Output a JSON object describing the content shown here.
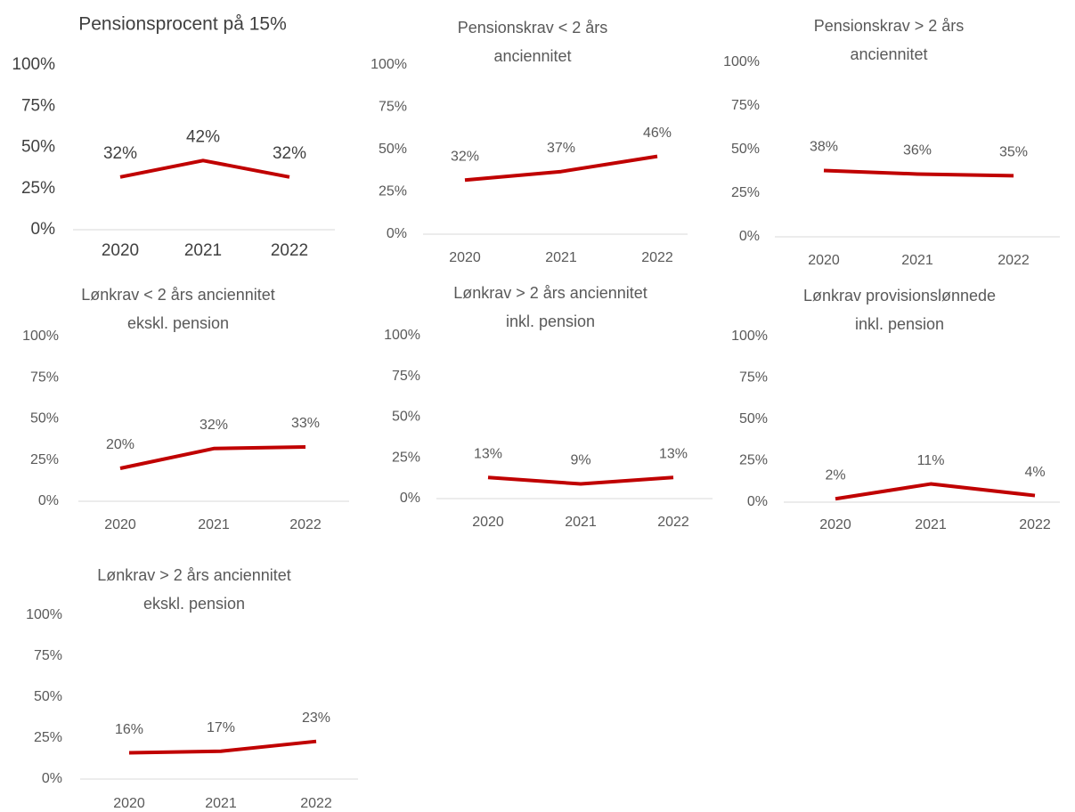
{
  "chart_data": [
    {
      "type": "line",
      "title": [
        "Pensionsprocent på 15%"
      ],
      "categories": [
        "2020",
        "2021",
        "2022"
      ],
      "values": [
        32,
        42,
        32
      ],
      "value_labels": [
        "32%",
        "42%",
        "32%"
      ],
      "color": "#c00000",
      "ylim": [
        0,
        100
      ],
      "yticks": [
        {
          "value": 0,
          "label": "0%"
        },
        {
          "value": 25,
          "label": "25%"
        },
        {
          "value": 50,
          "label": "50%"
        },
        {
          "value": 75,
          "label": "75%"
        },
        {
          "value": 100,
          "label": "100%"
        }
      ]
    },
    {
      "type": "line",
      "title": [
        "Pensionskrav < 2 års",
        "anciennitet"
      ],
      "categories": [
        "2020",
        "2021",
        "2022"
      ],
      "values": [
        32,
        37,
        46
      ],
      "value_labels": [
        "32%",
        "37%",
        "46%"
      ],
      "color": "#c00000",
      "ylim": [
        0,
        100
      ],
      "yticks": [
        {
          "value": 0,
          "label": "0%"
        },
        {
          "value": 25,
          "label": "25%"
        },
        {
          "value": 50,
          "label": "50%"
        },
        {
          "value": 75,
          "label": "75%"
        },
        {
          "value": 100,
          "label": "100%"
        }
      ]
    },
    {
      "type": "line",
      "title": [
        "Pensionskrav > 2 års",
        "anciennitet"
      ],
      "categories": [
        "2020",
        "2021",
        "2022"
      ],
      "values": [
        38,
        36,
        35
      ],
      "value_labels": [
        "38%",
        "36%",
        "35%"
      ],
      "color": "#c00000",
      "ylim": [
        0,
        100
      ],
      "yticks": [
        {
          "value": 0,
          "label": "0%"
        },
        {
          "value": 25,
          "label": "25%"
        },
        {
          "value": 50,
          "label": "50%"
        },
        {
          "value": 75,
          "label": "75%"
        },
        {
          "value": 100,
          "label": "100%"
        }
      ]
    },
    {
      "type": "line",
      "title": [
        "Lønkrav < 2 års anciennitet",
        "ekskl. pension"
      ],
      "categories": [
        "2020",
        "2021",
        "2022"
      ],
      "values": [
        20,
        32,
        33
      ],
      "value_labels": [
        "20%",
        "32%",
        "33%"
      ],
      "color": "#c00000",
      "ylim": [
        0,
        100
      ],
      "yticks": [
        {
          "value": 0,
          "label": "0%"
        },
        {
          "value": 25,
          "label": "25%"
        },
        {
          "value": 50,
          "label": "50%"
        },
        {
          "value": 75,
          "label": "75%"
        },
        {
          "value": 100,
          "label": "100%"
        }
      ]
    },
    {
      "type": "line",
      "title": [
        "Lønkrav > 2 års anciennitet",
        "inkl. pension"
      ],
      "categories": [
        "2020",
        "2021",
        "2022"
      ],
      "values": [
        13,
        9,
        13
      ],
      "value_labels": [
        "13%",
        "9%",
        "13%"
      ],
      "color": "#c00000",
      "ylim": [
        0,
        100
      ],
      "yticks": [
        {
          "value": 0,
          "label": "0%"
        },
        {
          "value": 25,
          "label": "25%"
        },
        {
          "value": 50,
          "label": "50%"
        },
        {
          "value": 75,
          "label": "75%"
        },
        {
          "value": 100,
          "label": "100%"
        }
      ]
    },
    {
      "type": "line",
      "title": [
        "Lønkrav provisionslønnede",
        "inkl. pension"
      ],
      "categories": [
        "2020",
        "2021",
        "2022"
      ],
      "values": [
        2,
        11,
        4
      ],
      "value_labels": [
        "2%",
        "11%",
        "4%"
      ],
      "color": "#c00000",
      "ylim": [
        0,
        100
      ],
      "yticks": [
        {
          "value": 0,
          "label": "0%"
        },
        {
          "value": 25,
          "label": "25%"
        },
        {
          "value": 50,
          "label": "50%"
        },
        {
          "value": 75,
          "label": "75%"
        },
        {
          "value": 100,
          "label": "100%"
        }
      ]
    },
    {
      "type": "line",
      "title": [
        "Lønkrav > 2 års anciennitet",
        "ekskl. pension"
      ],
      "categories": [
        "2020",
        "2021",
        "2022"
      ],
      "values": [
        16,
        17,
        23
      ],
      "value_labels": [
        "16%",
        "17%",
        "23%"
      ],
      "color": "#c00000",
      "ylim": [
        0,
        100
      ],
      "yticks": [
        {
          "value": 0,
          "label": "0%"
        },
        {
          "value": 25,
          "label": "25%"
        },
        {
          "value": 50,
          "label": "50%"
        },
        {
          "value": 75,
          "label": "75%"
        },
        {
          "value": 100,
          "label": "100%"
        }
      ]
    }
  ]
}
